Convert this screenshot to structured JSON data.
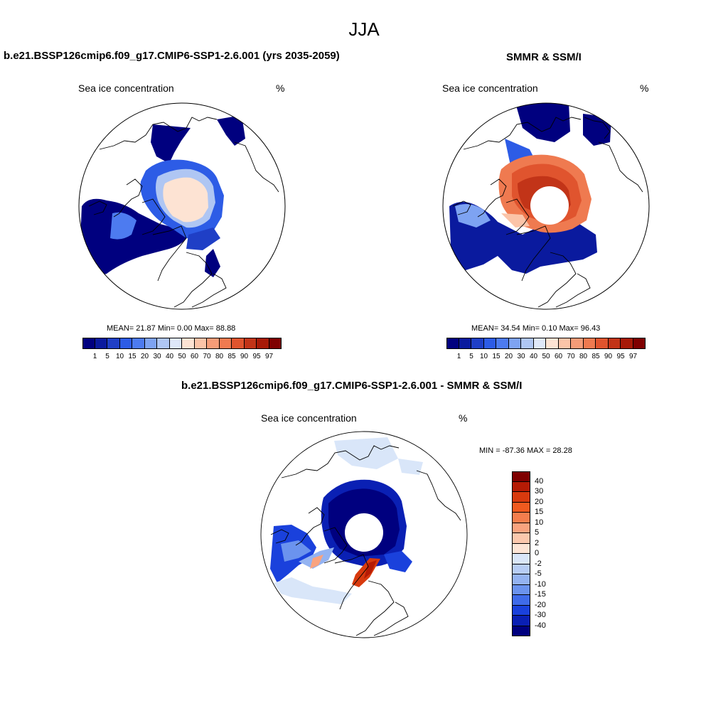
{
  "figure": {
    "title": "JJA",
    "variable_label": "Sea ice concentration",
    "units_label": "%"
  },
  "panels": {
    "model": {
      "title": "b.e21.BSSP126cmip6.f09_g17.CMIP6-SSP1-2.6.001 (yrs 2035-2059)",
      "stats": "MEAN=  21.87  Min=   0.00  Max=  88.88"
    },
    "obs": {
      "title": "SMMR & SSM/I",
      "stats": "MEAN=  34.54  Min=   0.10  Max=  96.43"
    },
    "diff": {
      "title": "b.e21.BSSP126cmip6.f09_g17.CMIP6-SSP1-2.6.001 - SMMR & SSM/I",
      "stats": "MIN = -87.36 MAX =  28.28"
    }
  },
  "conc_colorbar": {
    "labels": [
      "1",
      "5",
      "10",
      "15",
      "20",
      "30",
      "40",
      "50",
      "60",
      "70",
      "80",
      "85",
      "90",
      "95",
      "97"
    ],
    "colors": [
      "#00007f",
      "#0a1a9e",
      "#1f3fc6",
      "#2d5ce6",
      "#4d7bf0",
      "#7ea3f2",
      "#afc6f3",
      "#dfe8f9",
      "#fde3d3",
      "#fbc4a8",
      "#f59c78",
      "#ef7a50",
      "#e0542e",
      "#c23418",
      "#a71a08",
      "#7f0000"
    ]
  },
  "diff_colorbar": {
    "labels": [
      "40",
      "30",
      "20",
      "15",
      "10",
      "5",
      "2",
      "0",
      "-2",
      "-5",
      "-10",
      "-15",
      "-20",
      "-30",
      "-40"
    ],
    "colors": [
      "#7f0000",
      "#b51b05",
      "#d83a0e",
      "#f05a1f",
      "#f57e4d",
      "#f9a37f",
      "#fbc8ad",
      "#fde5d6",
      "#d9e6f9",
      "#b7cdf5",
      "#94b3f1",
      "#6b93ee",
      "#3f6bea",
      "#1a41dc",
      "#0a20b4",
      "#00007f"
    ]
  }
}
